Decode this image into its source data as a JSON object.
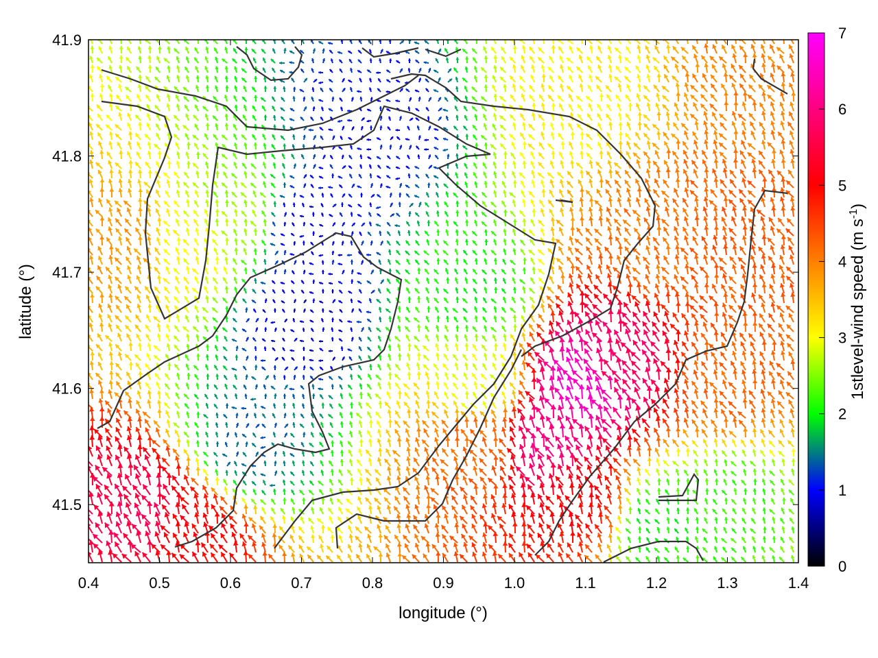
{
  "chart_data": {
    "type": "vector-field",
    "xlabel": "longitude (°)",
    "ylabel": "latitude (°)",
    "xlim": [
      0.4,
      1.4
    ],
    "ylim": [
      41.45,
      41.9
    ],
    "x_ticks": [
      "0.4",
      "0.5",
      "0.6",
      "0.7",
      "0.8",
      "0.9",
      "1.0",
      "1.1",
      "1.2",
      "1.3",
      "1.4"
    ],
    "y_ticks": [
      "41.5",
      "41.6",
      "41.7",
      "41.8",
      "41.9"
    ],
    "colorbar": {
      "label_main": "1stlevel-wind speed (m s",
      "label_sup": "-1",
      "label_close": ")",
      "range": [
        0,
        7
      ],
      "ticks": [
        "0",
        "1",
        "2",
        "3",
        "4",
        "5",
        "6",
        "7"
      ],
      "stops": [
        "#000000",
        "#0000ff",
        "#00ff00",
        "#ffff00",
        "#ff0000",
        "#ff00ff"
      ]
    },
    "grid": false,
    "prevailing_direction": "from south-east (vectors pointing north-west)",
    "speed_cells": [
      {
        "lon": 0.47,
        "lat": 41.49,
        "speed": 5.6
      },
      {
        "lon": 0.55,
        "lat": 41.47,
        "speed": 5.0
      },
      {
        "lon": 0.45,
        "lat": 41.72,
        "speed": 3.8
      },
      {
        "lon": 0.55,
        "lat": 41.72,
        "speed": 3.0
      },
      {
        "lon": 0.62,
        "lat": 41.75,
        "speed": 2.6
      },
      {
        "lon": 0.7,
        "lat": 41.74,
        "speed": 0.9
      },
      {
        "lon": 0.7,
        "lat": 41.66,
        "speed": 0.8
      },
      {
        "lon": 0.63,
        "lat": 41.55,
        "speed": 1.4
      },
      {
        "lon": 0.8,
        "lat": 41.82,
        "speed": 1.0
      },
      {
        "lon": 0.95,
        "lat": 41.68,
        "speed": 2.0
      },
      {
        "lon": 0.95,
        "lat": 41.6,
        "speed": 2.9
      },
      {
        "lon": 0.95,
        "lat": 41.55,
        "speed": 4.2
      },
      {
        "lon": 1.05,
        "lat": 41.55,
        "speed": 6.0
      },
      {
        "lon": 1.1,
        "lat": 41.6,
        "speed": 6.6
      },
      {
        "lon": 1.15,
        "lat": 41.62,
        "speed": 5.8
      },
      {
        "lon": 1.1,
        "lat": 41.5,
        "speed": 5.0
      },
      {
        "lon": 1.2,
        "lat": 41.72,
        "speed": 4.1
      },
      {
        "lon": 1.3,
        "lat": 41.72,
        "speed": 4.3
      },
      {
        "lon": 1.3,
        "lat": 41.6,
        "speed": 4.2
      },
      {
        "lon": 1.3,
        "lat": 41.5,
        "speed": 2.2
      },
      {
        "lon": 1.1,
        "lat": 41.85,
        "speed": 3.1
      },
      {
        "lon": 1.35,
        "lat": 41.86,
        "speed": 4.0
      },
      {
        "lon": 1.2,
        "lat": 41.48,
        "speed": 2.0
      }
    ]
  }
}
